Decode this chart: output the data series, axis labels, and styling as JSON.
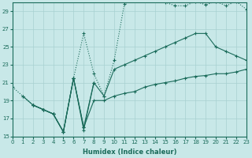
{
  "xlabel": "Humidex (Indice chaleur)",
  "bg_color": "#c8e8e8",
  "grid_color": "#a8d0d0",
  "line_color": "#1a6b5a",
  "xlim": [
    0,
    23
  ],
  "ylim": [
    15,
    30
  ],
  "yticks": [
    15,
    17,
    19,
    21,
    23,
    25,
    27,
    29
  ],
  "xticks": [
    0,
    1,
    2,
    3,
    4,
    5,
    6,
    7,
    8,
    9,
    10,
    11,
    12,
    13,
    14,
    15,
    16,
    17,
    18,
    19,
    20,
    21,
    22,
    23
  ],
  "line_top_x": [
    0,
    1,
    2,
    3,
    4,
    5,
    6,
    7,
    8,
    9,
    10,
    11,
    12,
    13,
    14,
    15,
    16,
    17,
    18,
    19,
    20,
    21,
    22,
    23
  ],
  "line_top_y": [
    20.5,
    19.5,
    18.5,
    18.0,
    17.5,
    15.5,
    21.5,
    26.5,
    22.0,
    19.5,
    23.5,
    29.8,
    30.4,
    30.6,
    30.3,
    30.0,
    29.6,
    29.6,
    30.1,
    29.7,
    30.1,
    29.6,
    30.1,
    29.2
  ],
  "line_zigzag_x": [
    1,
    2,
    3,
    4,
    5,
    6,
    7,
    8
  ],
  "line_zigzag_y": [
    19.5,
    18.5,
    18.0,
    17.5,
    15.5,
    21.5,
    15.7,
    21.0
  ],
  "line_mid_x": [
    2,
    3,
    4,
    5,
    6,
    7,
    8,
    9,
    10,
    11,
    12,
    13,
    14,
    15,
    16,
    17,
    18,
    19,
    20,
    21,
    22,
    23
  ],
  "line_mid_y": [
    18.5,
    18.0,
    17.5,
    15.5,
    21.5,
    16.0,
    21.0,
    19.5,
    22.5,
    23.0,
    23.5,
    24.0,
    24.5,
    25.0,
    25.5,
    26.0,
    26.5,
    26.5,
    25.0,
    24.5,
    24.0,
    23.5
  ],
  "line_bot_x": [
    2,
    3,
    4,
    5,
    6,
    7,
    8,
    9,
    10,
    11,
    12,
    13,
    14,
    15,
    16,
    17,
    18,
    19,
    20,
    21,
    22,
    23
  ],
  "line_bot_y": [
    18.5,
    18.0,
    17.5,
    15.5,
    21.5,
    16.0,
    19.0,
    19.0,
    19.5,
    19.8,
    20.0,
    20.5,
    20.8,
    21.0,
    21.2,
    21.5,
    21.7,
    21.8,
    22.0,
    22.0,
    22.2,
    22.5
  ]
}
